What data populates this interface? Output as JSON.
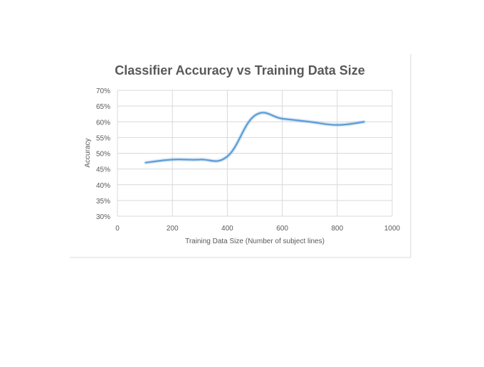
{
  "chart_data": {
    "type": "line",
    "title": "Classifier Accuracy vs Training Data Size",
    "xlabel": "Training Data Size (Number of subject lines)",
    "ylabel": "Accuracy",
    "xlim": [
      0,
      1000
    ],
    "ylim": [
      0.3,
      0.7
    ],
    "x_ticks": [
      0,
      200,
      400,
      600,
      800,
      1000
    ],
    "x_tick_labels": [
      "0",
      "200",
      "400",
      "600",
      "800",
      "1000"
    ],
    "y_ticks": [
      0.3,
      0.35,
      0.4,
      0.45,
      0.5,
      0.55,
      0.6,
      0.65,
      0.7
    ],
    "y_tick_labels": [
      "30%",
      "35%",
      "40%",
      "45%",
      "50%",
      "55%",
      "60%",
      "65%",
      "70%"
    ],
    "grid": true,
    "legend": "none",
    "series": [
      {
        "x": [
          100,
          200,
          300,
          400,
          500,
          600,
          700,
          800,
          900
        ],
        "values": [
          0.47,
          0.48,
          0.48,
          0.49,
          0.62,
          0.61,
          0.6,
          0.59,
          0.6
        ]
      }
    ],
    "colors": {
      "line": "#5b9bd5",
      "grid": "#d9d9d9",
      "frame": "#d9d9d9",
      "title": "#595959",
      "text": "#595959"
    }
  }
}
